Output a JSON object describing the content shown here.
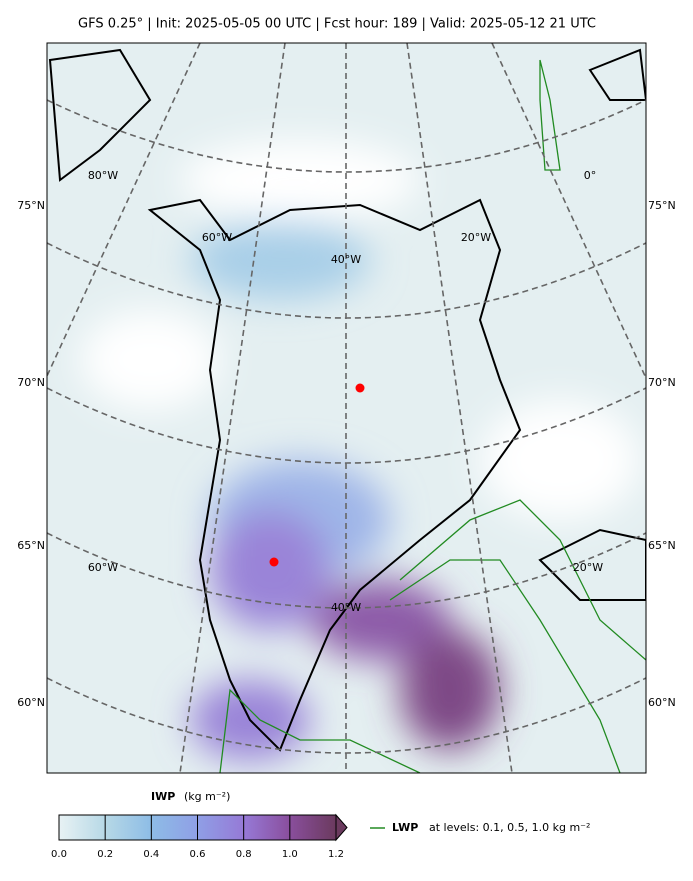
{
  "title": "GFS 0.25° | Init: 2025-05-05 00 UTC | Fcst hour: 189 | Valid: 2025-05-12 21 UTC",
  "map": {
    "lat_labels_left": [
      "75°N",
      "70°N",
      "65°N",
      "60°N"
    ],
    "lat_labels_right": [
      "75°N",
      "70°N",
      "65°N",
      "60°N"
    ],
    "lon_labels": [
      "80°W",
      "0°",
      "60°W",
      "20°W",
      "40°W",
      "60°W",
      "20°W",
      "40°W"
    ]
  },
  "colorbar": {
    "label": "IWP",
    "unit": "(kg m⁻²)",
    "ticks": [
      {
        "value": 0,
        "label": "0.0"
      },
      0.2,
      0.4,
      0.6,
      0.8,
      {
        "value": 1,
        "label": "1.0"
      },
      1.2
    ]
  },
  "legend": {
    "label": "LWP",
    "text": "at levels: 0.1, 0.5, 1.0  kg m⁻²",
    "color": "#228b22"
  }
}
